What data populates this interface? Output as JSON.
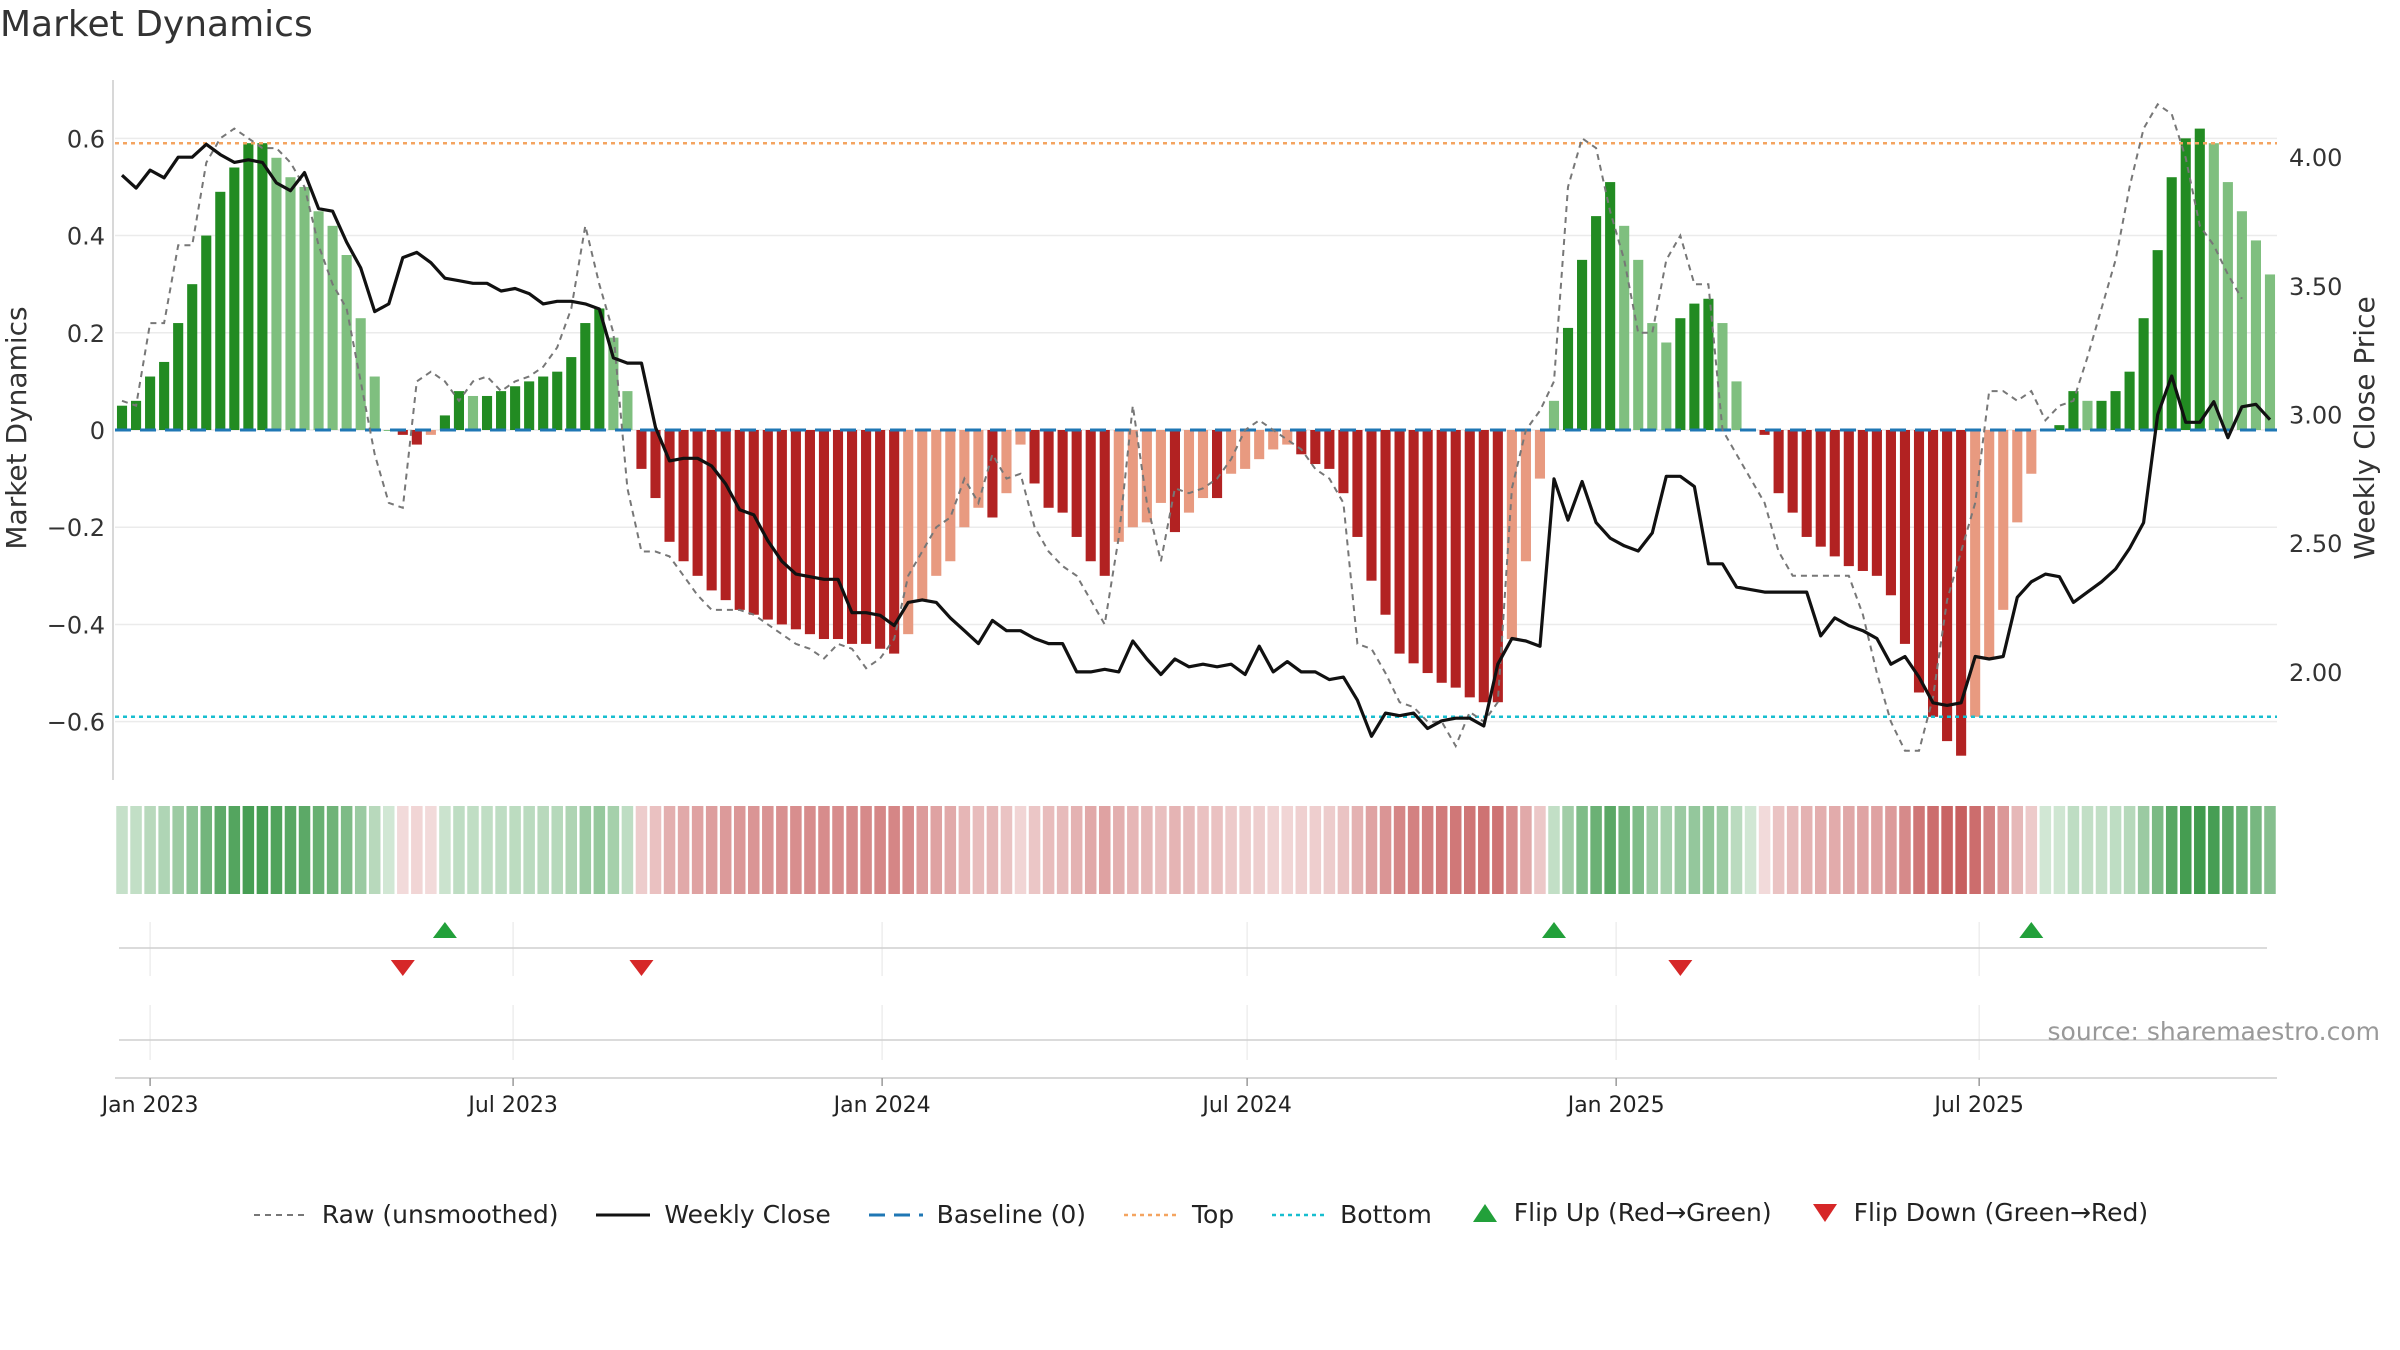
{
  "chart_data": {
    "type": "bar",
    "title": "Market Dynamics",
    "ylabel": "Market Dynamics",
    "y2label": "Weekly Close Price",
    "ylim": [
      -0.72,
      0.72
    ],
    "y2lim": [
      1.58,
      4.3
    ],
    "yticks": [
      {
        "v": 0.6,
        "t": "0.6"
      },
      {
        "v": 0.4,
        "t": "0.4"
      },
      {
        "v": 0.2,
        "t": "0.2"
      },
      {
        "v": 0,
        "t": "0"
      },
      {
        "v": -0.2,
        "t": "−0.2"
      },
      {
        "v": -0.4,
        "t": "−0.4"
      },
      {
        "v": -0.6,
        "t": "−0.6"
      }
    ],
    "y2ticks": [
      {
        "v": 4.0,
        "t": "4.00"
      },
      {
        "v": 3.5,
        "t": "3.50"
      },
      {
        "v": 3.0,
        "t": "3.00"
      },
      {
        "v": 2.5,
        "t": "2.50"
      },
      {
        "v": 2.0,
        "t": "2.00"
      }
    ],
    "xticks": [
      {
        "d": "2023-01-01",
        "t": "Jan 2023"
      },
      {
        "d": "2023-07-01",
        "t": "Jul 2023"
      },
      {
        "d": "2024-01-01",
        "t": "Jan 2024"
      },
      {
        "d": "2024-07-01",
        "t": "Jul 2024"
      },
      {
        "d": "2025-01-01",
        "t": "Jan 2025"
      },
      {
        "d": "2025-07-01",
        "t": "Jul 2025"
      }
    ],
    "start_date": "2022-12-18",
    "top": 0.59,
    "bottom": -0.59,
    "baseline": 0,
    "grid": true,
    "legend_position": "bottom-center",
    "source": "source: sharemaestro.com",
    "series": [
      {
        "name": "Raw (unsmoothed)",
        "type": "line",
        "style": "dashed",
        "color": "#777777"
      },
      {
        "name": "Weekly Close",
        "type": "line",
        "color": "#111111"
      },
      {
        "name": "Baseline (0)",
        "type": "line",
        "style": "dashed",
        "color": "#1f77b4"
      },
      {
        "name": "Top",
        "type": "line",
        "style": "dotted",
        "color": "#f4a460"
      },
      {
        "name": "Bottom",
        "type": "line",
        "style": "dotted",
        "color": "#17becf"
      },
      {
        "name": "Flip Up (Red→Green)",
        "type": "marker",
        "color": "#22a03a"
      },
      {
        "name": "Flip Down (Green→Red)",
        "type": "marker",
        "color": "#d62728"
      }
    ],
    "smoothed": [
      0.05,
      0.06,
      0.11,
      0.14,
      0.22,
      0.3,
      0.4,
      0.49,
      0.54,
      0.59,
      0.59,
      0.56,
      0.52,
      0.5,
      0.45,
      0.42,
      0.36,
      0.23,
      0.11,
      0.0,
      -0.01,
      -0.03,
      -0.01,
      0.03,
      0.08,
      0.07,
      0.07,
      0.08,
      0.09,
      0.1,
      0.11,
      0.12,
      0.15,
      0.22,
      0.25,
      0.19,
      0.08,
      -0.08,
      -0.14,
      -0.23,
      -0.27,
      -0.3,
      -0.33,
      -0.35,
      -0.37,
      -0.38,
      -0.39,
      -0.4,
      -0.41,
      -0.42,
      -0.43,
      -0.43,
      -0.44,
      -0.44,
      -0.45,
      -0.46,
      -0.42,
      -0.35,
      -0.3,
      -0.27,
      -0.2,
      -0.16,
      -0.18,
      -0.13,
      -0.03,
      -0.11,
      -0.16,
      -0.17,
      -0.22,
      -0.27,
      -0.3,
      -0.23,
      -0.2,
      -0.19,
      -0.15,
      -0.21,
      -0.17,
      -0.14,
      -0.14,
      -0.09,
      -0.08,
      -0.06,
      -0.04,
      -0.03,
      -0.05,
      -0.07,
      -0.08,
      -0.13,
      -0.22,
      -0.31,
      -0.38,
      -0.46,
      -0.48,
      -0.5,
      -0.52,
      -0.53,
      -0.55,
      -0.56,
      -0.56,
      -0.43,
      -0.27,
      -0.1,
      0.06,
      0.21,
      0.35,
      0.44,
      0.51,
      0.42,
      0.35,
      0.22,
      0.18,
      0.23,
      0.26,
      0.27,
      0.22,
      0.1,
      0.0,
      -0.01,
      -0.13,
      -0.17,
      -0.22,
      -0.24,
      -0.26,
      -0.28,
      -0.29,
      -0.3,
      -0.34,
      -0.44,
      -0.54,
      -0.59,
      -0.64,
      -0.67,
      -0.59,
      -0.47,
      -0.37,
      -0.19,
      -0.09,
      0.0,
      0.01,
      0.08,
      0.06,
      0.06,
      0.08,
      0.12,
      0.23,
      0.37,
      0.52,
      0.6,
      0.62,
      0.59,
      0.51,
      0.45,
      0.39,
      0.32
    ],
    "raw": [
      0.06,
      0.05,
      0.22,
      0.22,
      0.38,
      0.38,
      0.55,
      0.6,
      0.62,
      0.6,
      0.58,
      0.58,
      0.55,
      0.5,
      0.38,
      0.3,
      0.25,
      0.1,
      -0.05,
      -0.15,
      -0.16,
      0.1,
      0.12,
      0.1,
      0.06,
      0.1,
      0.11,
      0.08,
      0.1,
      0.11,
      0.13,
      0.17,
      0.25,
      0.42,
      0.3,
      0.2,
      -0.12,
      -0.25,
      -0.25,
      -0.26,
      -0.3,
      -0.34,
      -0.37,
      -0.37,
      -0.37,
      -0.38,
      -0.4,
      -0.42,
      -0.44,
      -0.45,
      -0.47,
      -0.44,
      -0.45,
      -0.49,
      -0.47,
      -0.43,
      -0.3,
      -0.25,
      -0.2,
      -0.18,
      -0.1,
      -0.15,
      -0.05,
      -0.1,
      -0.09,
      -0.2,
      -0.25,
      -0.28,
      -0.3,
      -0.35,
      -0.4,
      -0.22,
      0.05,
      -0.15,
      -0.27,
      -0.12,
      -0.13,
      -0.12,
      -0.1,
      -0.06,
      0.0,
      0.02,
      0.0,
      -0.02,
      -0.04,
      -0.08,
      -0.1,
      -0.15,
      -0.44,
      -0.45,
      -0.5,
      -0.56,
      -0.57,
      -0.6,
      -0.6,
      -0.65,
      -0.58,
      -0.6,
      -0.56,
      -0.12,
      0.0,
      0.04,
      0.1,
      0.5,
      0.6,
      0.58,
      0.45,
      0.35,
      0.2,
      0.2,
      0.35,
      0.4,
      0.3,
      0.3,
      0.0,
      -0.05,
      -0.1,
      -0.15,
      -0.25,
      -0.3,
      -0.3,
      -0.3,
      -0.3,
      -0.3,
      -0.38,
      -0.5,
      -0.6,
      -0.66,
      -0.66,
      -0.55,
      -0.35,
      -0.25,
      -0.15,
      0.08,
      0.08,
      0.06,
      0.08,
      0.02,
      0.05,
      0.06,
      0.15,
      0.25,
      0.35,
      0.5,
      0.62,
      0.67,
      0.65,
      0.56,
      0.42,
      0.38,
      0.32,
      0.27
    ],
    "close": [
      3.93,
      3.88,
      3.95,
      3.92,
      4.0,
      4.0,
      4.05,
      4.01,
      3.98,
      3.99,
      3.98,
      3.9,
      3.87,
      3.94,
      3.8,
      3.79,
      3.67,
      3.57,
      3.4,
      3.43,
      3.61,
      3.63,
      3.59,
      3.53,
      3.52,
      3.51,
      3.51,
      3.48,
      3.49,
      3.47,
      3.43,
      3.44,
      3.44,
      3.43,
      3.41,
      3.22,
      3.2,
      3.2,
      2.95,
      2.82,
      2.83,
      2.83,
      2.8,
      2.73,
      2.63,
      2.61,
      2.51,
      2.43,
      2.38,
      2.37,
      2.36,
      2.36,
      2.23,
      2.23,
      2.22,
      2.18,
      2.27,
      2.28,
      2.27,
      2.21,
      2.16,
      2.11,
      2.2,
      2.16,
      2.16,
      2.13,
      2.11,
      2.11,
      2.0,
      2.0,
      2.01,
      2.0,
      2.12,
      2.05,
      1.99,
      2.05,
      2.02,
      2.03,
      2.02,
      2.03,
      1.99,
      2.1,
      2.0,
      2.04,
      2.0,
      2.0,
      1.97,
      1.98,
      1.89,
      1.75,
      1.84,
      1.83,
      1.84,
      1.78,
      1.81,
      1.82,
      1.82,
      1.79,
      2.03,
      2.13,
      2.12,
      2.1,
      2.75,
      2.59,
      2.74,
      2.58,
      2.52,
      2.49,
      2.47,
      2.54,
      2.76,
      2.76,
      2.72,
      2.42,
      2.42,
      2.33,
      2.32,
      2.31,
      2.31,
      2.31,
      2.31,
      2.14,
      2.21,
      2.18,
      2.16,
      2.13,
      2.03,
      2.06,
      1.98,
      1.88,
      1.87,
      1.88,
      2.06,
      2.05,
      2.06,
      2.29,
      2.35,
      2.38,
      2.37,
      2.27,
      2.31,
      2.35,
      2.4,
      2.48,
      2.58,
      3.0,
      3.15,
      2.97,
      2.97,
      3.05,
      2.91,
      3.03,
      3.04,
      2.98
    ],
    "flip_up": [
      23,
      102,
      136
    ],
    "flip_down": [
      20,
      37,
      111
    ]
  }
}
